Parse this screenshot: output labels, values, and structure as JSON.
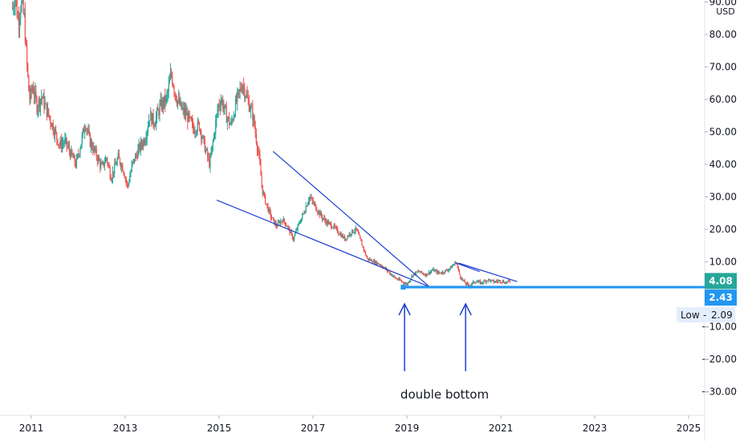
{
  "chart_data": {
    "type": "candlestick",
    "currency": "USD",
    "x_ticks": [
      "2011",
      "2013",
      "2015",
      "2017",
      "2019",
      "2021",
      "2023",
      "2025"
    ],
    "y_ticks": [
      "90.00",
      "80.00",
      "70.00",
      "60.00",
      "50.00",
      "40.00",
      "30.00",
      "20.00",
      "10.00",
      "−10.00",
      "−20.00",
      "−30.00"
    ],
    "ylim": [
      -35,
      92
    ],
    "xlim": [
      2010.55,
      2025.35
    ],
    "colors": {
      "up": "#26a69a",
      "down": "#ef5350",
      "trendline": "#1f3fd1",
      "support": "#2196f3",
      "last_price": "#26a69a"
    },
    "price_series": [
      [
        2010.6,
        88
      ],
      [
        2010.65,
        93
      ],
      [
        2010.72,
        84
      ],
      [
        2010.78,
        90
      ],
      [
        2010.85,
        85
      ],
      [
        2010.9,
        72
      ],
      [
        2010.96,
        60
      ],
      [
        2011.03,
        64
      ],
      [
        2011.12,
        58
      ],
      [
        2011.22,
        61
      ],
      [
        2011.32,
        57
      ],
      [
        2011.45,
        52
      ],
      [
        2011.6,
        46
      ],
      [
        2011.72,
        47
      ],
      [
        2011.85,
        43
      ],
      [
        2011.95,
        40
      ],
      [
        2012.05,
        46
      ],
      [
        2012.15,
        53
      ],
      [
        2012.25,
        47
      ],
      [
        2012.38,
        43
      ],
      [
        2012.5,
        39
      ],
      [
        2012.6,
        42
      ],
      [
        2012.7,
        36
      ],
      [
        2012.85,
        42
      ],
      [
        2012.95,
        39
      ],
      [
        2013.05,
        33
      ],
      [
        2013.15,
        40
      ],
      [
        2013.3,
        45
      ],
      [
        2013.42,
        48
      ],
      [
        2013.52,
        55
      ],
      [
        2013.62,
        53
      ],
      [
        2013.75,
        58
      ],
      [
        2013.88,
        60
      ],
      [
        2013.98,
        68
      ],
      [
        2014.08,
        61
      ],
      [
        2014.2,
        57
      ],
      [
        2014.32,
        55
      ],
      [
        2014.45,
        51
      ],
      [
        2014.58,
        52
      ],
      [
        2014.7,
        45
      ],
      [
        2014.8,
        40
      ],
      [
        2014.88,
        48
      ],
      [
        2014.98,
        58
      ],
      [
        2015.05,
        60
      ],
      [
        2015.15,
        55
      ],
      [
        2015.25,
        52
      ],
      [
        2015.38,
        60
      ],
      [
        2015.5,
        65
      ],
      [
        2015.6,
        60
      ],
      [
        2015.72,
        55
      ],
      [
        2015.85,
        42
      ],
      [
        2015.92,
        32
      ],
      [
        2016.0,
        28
      ],
      [
        2016.1,
        24
      ],
      [
        2016.22,
        21
      ],
      [
        2016.35,
        23
      ],
      [
        2016.45,
        21
      ],
      [
        2016.58,
        17
      ],
      [
        2016.68,
        21
      ],
      [
        2016.8,
        25
      ],
      [
        2016.92,
        30
      ],
      [
        2017.05,
        27
      ],
      [
        2017.18,
        24
      ],
      [
        2017.3,
        22
      ],
      [
        2017.42,
        21
      ],
      [
        2017.55,
        19
      ],
      [
        2017.68,
        17
      ],
      [
        2017.8,
        19
      ],
      [
        2017.92,
        20
      ],
      [
        2018.05,
        15
      ],
      [
        2018.15,
        11
      ],
      [
        2018.3,
        10
      ],
      [
        2018.45,
        9
      ],
      [
        2018.6,
        7
      ],
      [
        2018.75,
        5
      ],
      [
        2018.88,
        4
      ],
      [
        2019.0,
        3
      ],
      [
        2019.12,
        6
      ],
      [
        2019.25,
        7
      ],
      [
        2019.4,
        6
      ],
      [
        2019.55,
        7.5
      ],
      [
        2019.68,
        6.5
      ],
      [
        2019.8,
        7
      ],
      [
        2019.92,
        8
      ],
      [
        2020.05,
        10
      ],
      [
        2020.12,
        6
      ],
      [
        2020.2,
        4
      ],
      [
        2020.32,
        2.5
      ],
      [
        2020.45,
        4
      ],
      [
        2020.58,
        3.5
      ],
      [
        2020.72,
        4.5
      ],
      [
        2020.85,
        3.8
      ],
      [
        2020.98,
        4.2
      ],
      [
        2021.1,
        3.6
      ],
      [
        2021.2,
        4.08
      ]
    ],
    "trendlines": [
      {
        "from": [
          2014.95,
          29
        ],
        "to": [
          2019.48,
          2.3
        ]
      },
      {
        "from": [
          2016.15,
          44
        ],
        "to": [
          2019.48,
          2.3
        ]
      },
      {
        "from": [
          2020.05,
          9.6
        ],
        "to": [
          2020.55,
          7.0
        ]
      },
      {
        "from": [
          2020.1,
          9.6
        ],
        "to": [
          2021.35,
          3.9
        ]
      },
      {
        "from": [
          2018.92,
          2.4
        ],
        "to": [
          2021.25,
          2.4
        ]
      }
    ],
    "support_level": 2.43,
    "last_price": "4.08",
    "support_label": "2.43",
    "low_label": "Low",
    "low_value": "2.09",
    "annotation": "double bottom",
    "arrows_x": [
      2018.95,
      2020.25
    ]
  }
}
